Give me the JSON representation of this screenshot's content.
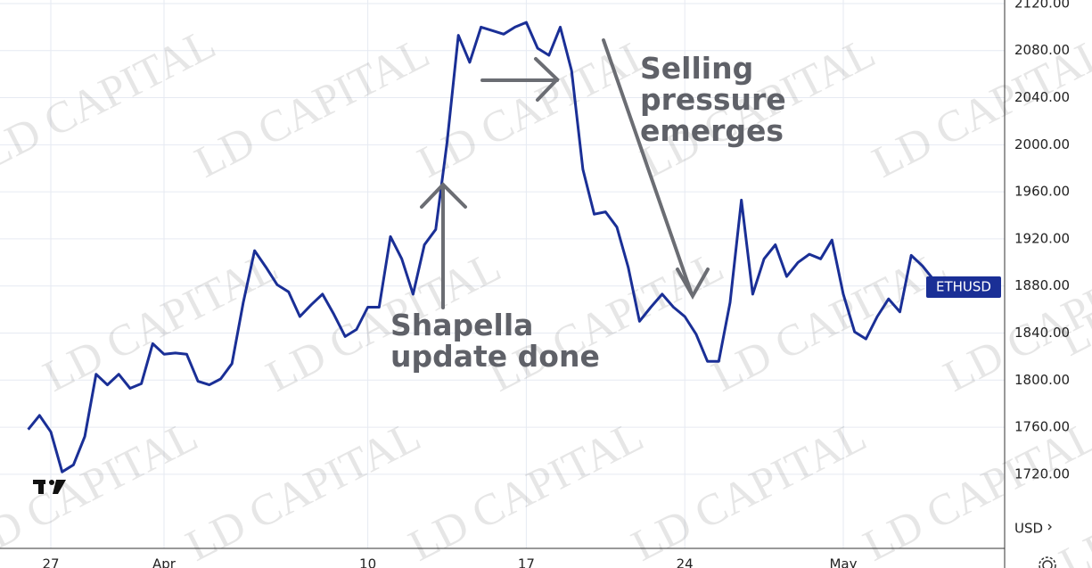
{
  "chart_data": {
    "type": "line",
    "watermark": "LD CAPITAL",
    "currency": "USD",
    "annotations": [
      [
        "Shapella",
        "update done"
      ],
      [
        "Selling",
        "pressure",
        "emerges"
      ]
    ],
    "categories": [
      null,
      null,
      "27",
      null,
      null,
      null,
      null,
      null,
      null,
      null,
      null,
      null,
      "Apr",
      null,
      null,
      null,
      null,
      null,
      null,
      null,
      null,
      null,
      null,
      null,
      null,
      null,
      null,
      null,
      null,
      null,
      "10",
      null,
      null,
      null,
      null,
      null,
      null,
      null,
      null,
      null,
      null,
      null,
      null,
      null,
      "17",
      null,
      null,
      null,
      null,
      null,
      null,
      null,
      null,
      null,
      null,
      null,
      null,
      null,
      "24",
      null,
      null,
      null,
      null,
      null,
      null,
      null,
      null,
      null,
      null,
      null,
      null,
      null,
      "May",
      null,
      null,
      null,
      null,
      null,
      null,
      null,
      null,
      null
    ],
    "series": [
      {
        "name": "ETHUSD",
        "color": "#1a2f96",
        "values": [
          1758,
          1770,
          1756,
          1722,
          1728,
          1752,
          1805,
          1796,
          1805,
          1793,
          1797,
          1831,
          1822,
          1823,
          1822,
          1799,
          1796,
          1801,
          1814,
          1866,
          1910,
          1896,
          1881,
          1875,
          1854,
          1864,
          1873,
          1856,
          1837,
          1843,
          1862,
          1862,
          1922,
          1903,
          1873,
          1915,
          1928,
          2002,
          2093,
          2070,
          2100,
          2097,
          2094,
          2100,
          2104,
          2082,
          2076,
          2100,
          2063,
          1979,
          1941,
          1943,
          1930,
          1896,
          1850,
          1862,
          1873,
          1862,
          1854,
          1839,
          1816,
          1816,
          1866,
          1953,
          1873,
          1903,
          1915,
          1888,
          1900,
          1907,
          1903,
          1919,
          1873,
          1841,
          1835,
          1854,
          1869,
          1858,
          1906,
          1897,
          1885,
          1879
        ]
      }
    ],
    "ylim": [
      1657,
      2123
    ],
    "yticks": [
      {
        "value": 1720,
        "label": "1720.00"
      },
      {
        "value": 1760,
        "label": "1760.00"
      },
      {
        "value": 1800,
        "label": "1800.00"
      },
      {
        "value": 1840,
        "label": "1840.00"
      },
      {
        "value": 1880,
        "label": "1880.00"
      },
      {
        "value": 1920,
        "label": "1920.00"
      },
      {
        "value": 1960,
        "label": "1960.00"
      },
      {
        "value": 2000,
        "label": "2000.00"
      },
      {
        "value": 2040,
        "label": "2040.00"
      },
      {
        "value": 2080,
        "label": "2080.00"
      },
      {
        "value": 2120,
        "label": "2120.00"
      }
    ],
    "grid": true
  }
}
